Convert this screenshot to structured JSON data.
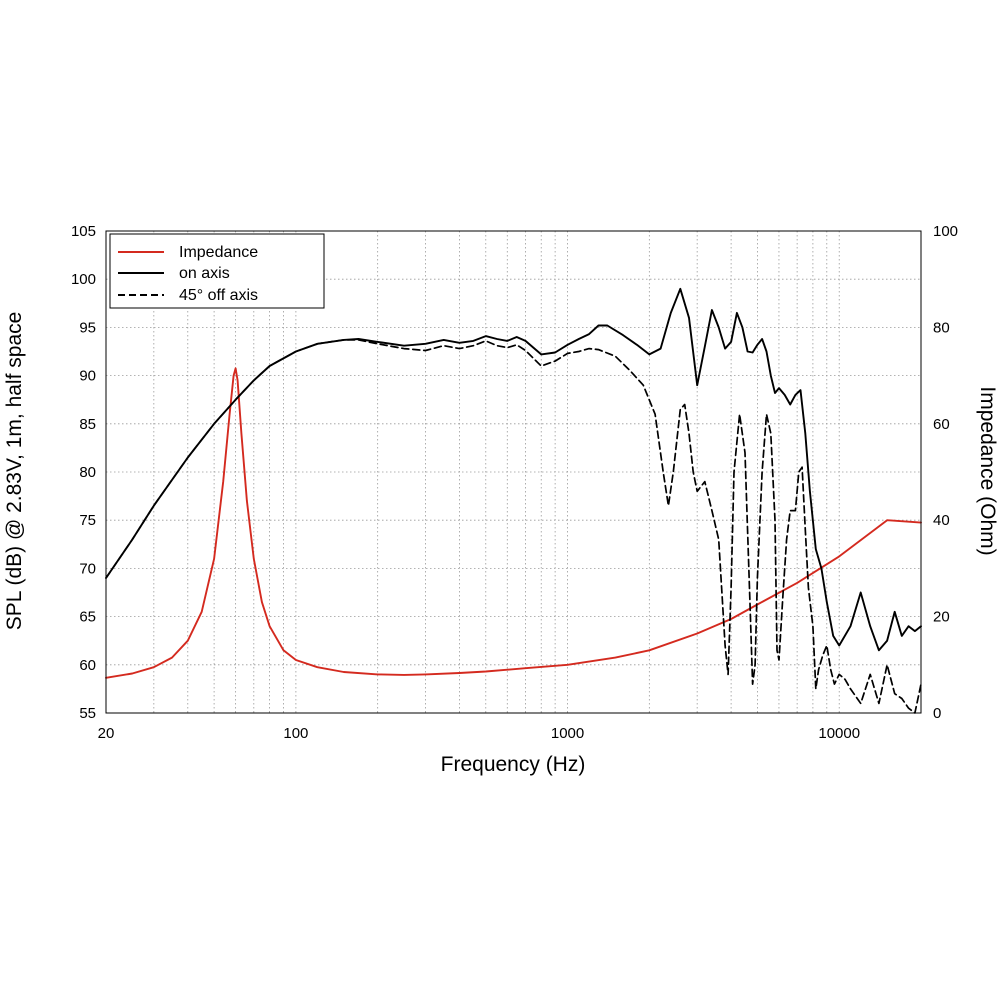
{
  "chart_data": {
    "type": "line",
    "xscale": "log",
    "xlabel": "Frequency (Hz)",
    "ylabel": "SPL (dB) @ 2.83V, 1m, half space",
    "y2label": "Impedance (Ohm)",
    "xlim": [
      20,
      20000
    ],
    "ylim": [
      55,
      105
    ],
    "y2lim": [
      0,
      100
    ],
    "grid": true,
    "legend": "top-left",
    "x_ticks": [
      20,
      100,
      1000,
      10000
    ],
    "x_tick_labels": [
      "20",
      "100",
      "1000",
      "10000"
    ],
    "y_ticks": [
      55,
      60,
      65,
      70,
      75,
      80,
      85,
      90,
      95,
      100,
      105
    ],
    "y_tick_labels": [
      "55",
      "60",
      "65",
      "70",
      "75",
      "80",
      "85",
      "90",
      "95",
      "100",
      "105"
    ],
    "y2_ticks": [
      0,
      20,
      40,
      60,
      80,
      100
    ],
    "y2_tick_labels": [
      "0",
      "20",
      "40",
      "60",
      "80",
      "100"
    ],
    "series": [
      {
        "name": "Impedance",
        "axis": "right",
        "color": "#d42a1f",
        "style": "solid",
        "x": [
          20,
          25,
          30,
          35,
          40,
          45,
          50,
          54,
          57,
          59,
          60,
          61,
          63,
          66,
          70,
          75,
          80,
          90,
          100,
          120,
          150,
          200,
          250,
          300,
          400,
          500,
          700,
          1000,
          1500,
          2000,
          3000,
          4000,
          5000,
          7000,
          10000,
          15000,
          20000
        ],
        "values": [
          7.3,
          8.2,
          9.5,
          11.5,
          15,
          21,
          32,
          48,
          62,
          70,
          71.5,
          69,
          58,
          44,
          32,
          23,
          18,
          13,
          11,
          9.5,
          8.5,
          8,
          7.9,
          8,
          8.3,
          8.6,
          9.3,
          10,
          11.5,
          13,
          16.5,
          19.5,
          22.5,
          27,
          32.5,
          40,
          39.5
        ]
      },
      {
        "name": "on axis",
        "axis": "left",
        "color": "#000000",
        "style": "solid",
        "x": [
          20,
          25,
          30,
          40,
          50,
          60,
          70,
          80,
          100,
          120,
          150,
          170,
          200,
          250,
          300,
          350,
          400,
          450,
          500,
          550,
          600,
          650,
          700,
          800,
          900,
          1000,
          1100,
          1200,
          1300,
          1400,
          1600,
          1800,
          2000,
          2200,
          2400,
          2600,
          2800,
          3000,
          3200,
          3400,
          3600,
          3800,
          4000,
          4200,
          4400,
          4600,
          4800,
          5000,
          5200,
          5400,
          5600,
          5800,
          6000,
          6300,
          6600,
          6900,
          7200,
          7500,
          7800,
          8200,
          8600,
          9000,
          9500,
          10000,
          11000,
          12000,
          13000,
          14000,
          15000,
          16000,
          17000,
          18000,
          19000,
          20000
        ],
        "values": [
          69,
          73,
          76.5,
          81.5,
          85,
          87.5,
          89.5,
          91,
          92.5,
          93.3,
          93.7,
          93.8,
          93.5,
          93.1,
          93.3,
          93.7,
          93.4,
          93.6,
          94.1,
          93.8,
          93.6,
          94,
          93.6,
          92.2,
          92.4,
          93.2,
          93.8,
          94.3,
          95.2,
          95.2,
          94.2,
          93.2,
          92.2,
          92.8,
          96.5,
          99,
          96,
          89,
          93,
          96.8,
          95,
          92.8,
          93.5,
          96.5,
          95,
          92.5,
          92.4,
          93.2,
          93.8,
          92.5,
          90,
          88.2,
          88.7,
          88,
          87,
          88,
          88.5,
          84,
          78,
          72,
          70,
          66.5,
          63,
          62,
          64,
          67.5,
          64,
          61.5,
          62.5,
          65.5,
          63,
          64,
          63.5,
          64
        ]
      },
      {
        "name": "45° off axis",
        "axis": "left",
        "color": "#000000",
        "style": "dashed",
        "x": [
          20,
          25,
          30,
          40,
          50,
          60,
          70,
          80,
          100,
          120,
          150,
          170,
          200,
          250,
          300,
          350,
          400,
          450,
          500,
          550,
          600,
          650,
          700,
          800,
          900,
          1000,
          1100,
          1200,
          1300,
          1500,
          1700,
          1900,
          2100,
          2250,
          2350,
          2450,
          2600,
          2700,
          2800,
          2900,
          3000,
          3200,
          3400,
          3600,
          3800,
          3900,
          4000,
          4100,
          4300,
          4500,
          4700,
          4800,
          4900,
          5000,
          5200,
          5400,
          5600,
          5800,
          5900,
          6000,
          6200,
          6400,
          6600,
          6900,
          7100,
          7300,
          7500,
          7700,
          8000,
          8200,
          8400,
          8700,
          9000,
          9300,
          9600,
          10000,
          10500,
          11000,
          12000,
          13000,
          14000,
          15000,
          16000,
          17000,
          18000,
          19000,
          20000
        ],
        "values": [
          69,
          73,
          76.5,
          81.5,
          85,
          87.5,
          89.5,
          91,
          92.5,
          93.3,
          93.7,
          93.7,
          93.3,
          92.8,
          92.6,
          93.1,
          92.8,
          93.1,
          93.6,
          93.1,
          92.9,
          93.2,
          92.6,
          91,
          91.5,
          92.3,
          92.5,
          92.8,
          92.7,
          92,
          90.5,
          89,
          86,
          80,
          76.5,
          80,
          86.5,
          87,
          84,
          80,
          78,
          79,
          76,
          73,
          62,
          59,
          68,
          80,
          86,
          82,
          66,
          58,
          60,
          69,
          80,
          86,
          84,
          75,
          61.5,
          60.5,
          67,
          73,
          76,
          76,
          80,
          80.5,
          74,
          68,
          64,
          57.5,
          59.5,
          61,
          62,
          59.5,
          58,
          59,
          58.5,
          57.5,
          56,
          59,
          56,
          60,
          57,
          56.5,
          55.5,
          55,
          58
        ]
      }
    ]
  }
}
